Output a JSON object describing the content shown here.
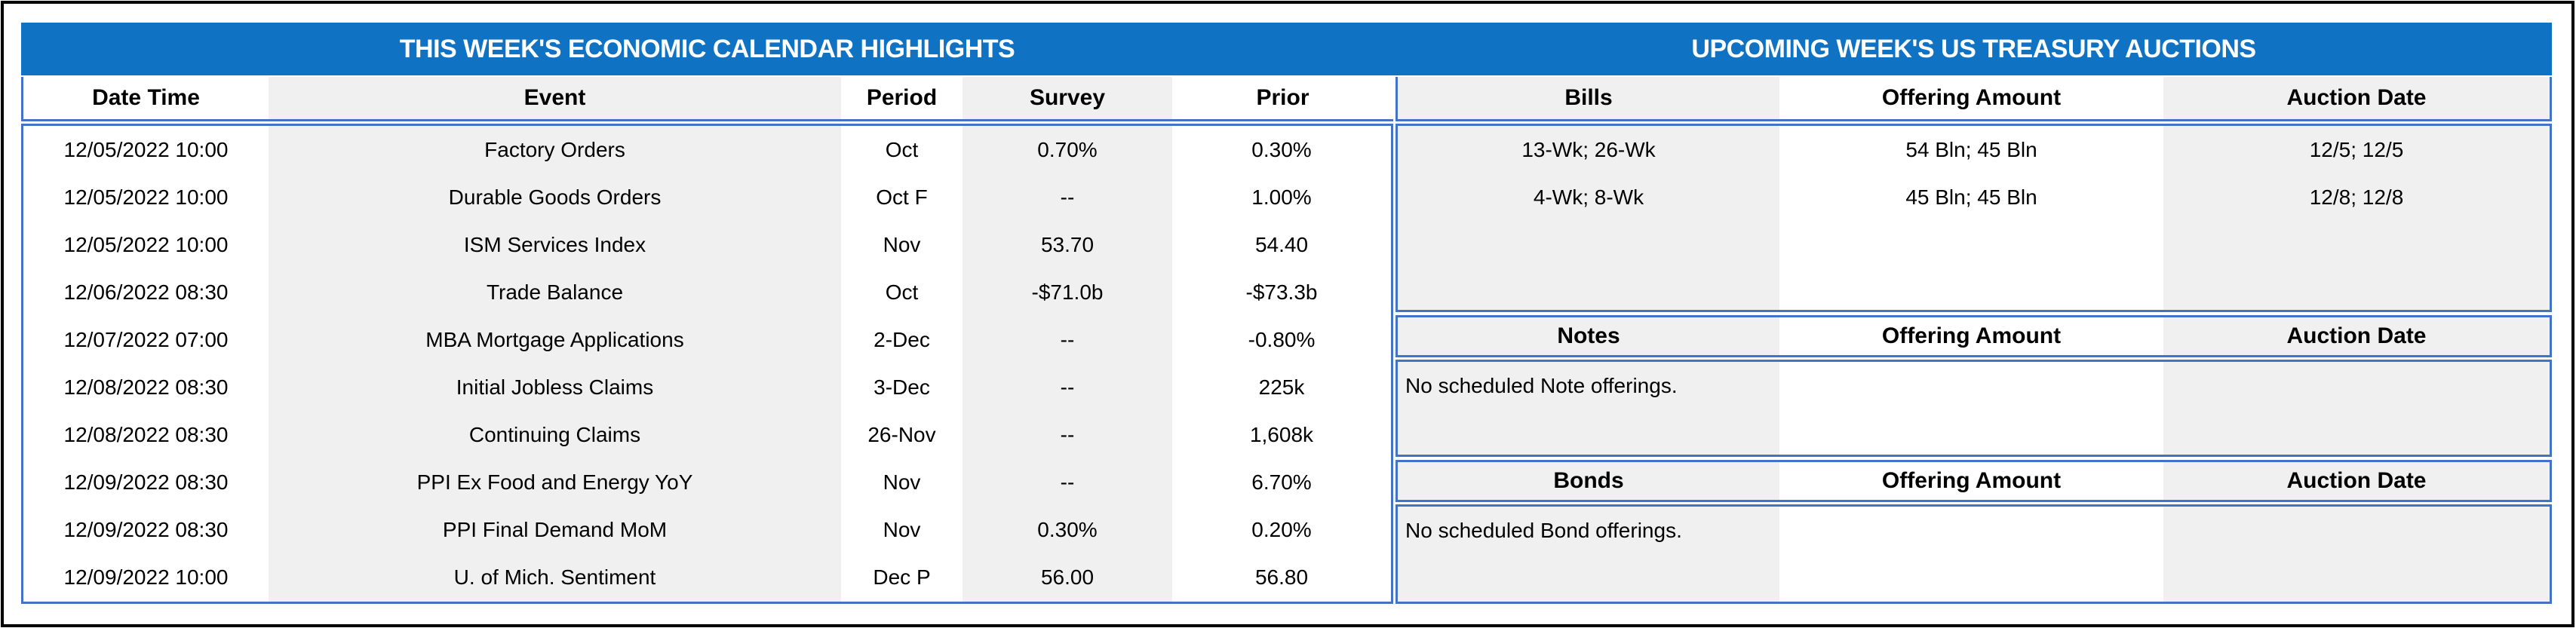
{
  "titles": {
    "left": "THIS WEEK'S ECONOMIC CALENDAR HIGHLIGHTS",
    "right": "UPCOMING WEEK'S US TREASURY AUCTIONS"
  },
  "calendar": {
    "headers": {
      "date": "Date Time",
      "event": "Event",
      "period": "Period",
      "survey": "Survey",
      "prior": "Prior"
    },
    "rows": [
      {
        "date": "12/05/2022 10:00",
        "event": "Factory Orders",
        "period": "Oct",
        "survey": "0.70%",
        "prior": "0.30%"
      },
      {
        "date": "12/05/2022 10:00",
        "event": "Durable Goods Orders",
        "period": "Oct F",
        "survey": "--",
        "prior": "1.00%"
      },
      {
        "date": "12/05/2022 10:00",
        "event": "ISM Services Index",
        "period": "Nov",
        "survey": "53.70",
        "prior": "54.40"
      },
      {
        "date": "12/06/2022 08:30",
        "event": "Trade Balance",
        "period": "Oct",
        "survey": "-$71.0b",
        "prior": "-$73.3b"
      },
      {
        "date": "12/07/2022 07:00",
        "event": "MBA Mortgage Applications",
        "period": "2-Dec",
        "survey": "--",
        "prior": "-0.80%"
      },
      {
        "date": "12/08/2022 08:30",
        "event": "Initial Jobless Claims",
        "period": "3-Dec",
        "survey": "--",
        "prior": "225k"
      },
      {
        "date": "12/08/2022 08:30",
        "event": "Continuing Claims",
        "period": "26-Nov",
        "survey": "--",
        "prior": "1,608k"
      },
      {
        "date": "12/09/2022 08:30",
        "event": "PPI Ex Food and Energy YoY",
        "period": "Nov",
        "survey": "--",
        "prior": "6.70%"
      },
      {
        "date": "12/09/2022 08:30",
        "event": "PPI Final Demand MoM",
        "period": "Nov",
        "survey": "0.30%",
        "prior": "0.20%"
      },
      {
        "date": "12/09/2022 10:00",
        "event": "U. of Mich. Sentiment",
        "period": "Dec P",
        "survey": "56.00",
        "prior": "56.80"
      }
    ]
  },
  "auctions": {
    "bills": {
      "header": {
        "type": "Bills",
        "amount": "Offering Amount",
        "date": "Auction Date"
      },
      "rows": [
        {
          "type": "13-Wk; 26-Wk",
          "amount": "54 Bln; 45 Bln",
          "date": "12/5; 12/5"
        },
        {
          "type": "4-Wk; 8-Wk",
          "amount": "45 Bln; 45 Bln",
          "date": "12/8; 12/8"
        }
      ]
    },
    "notes": {
      "header": {
        "type": "Notes",
        "amount": "Offering Amount",
        "date": "Auction Date"
      },
      "empty": "No scheduled Note offerings."
    },
    "bonds": {
      "header": {
        "type": "Bonds",
        "amount": "Offering Amount",
        "date": "Auction Date"
      },
      "empty": "No scheduled Bond offerings."
    }
  },
  "colors": {
    "title_bar_blue": "#0F72C3",
    "table_border_blue": "#4472C4",
    "column_stripe_gray": "#F0F0F0",
    "outer_frame_black": "#000000"
  }
}
